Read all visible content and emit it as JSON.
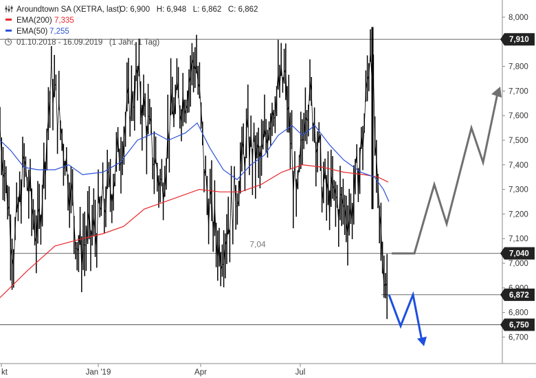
{
  "legend": {
    "title": "Aroundtown SA (XETRA, last)",
    "ohlc": "O: 6,900   H: 6,948   L: 6,862   C: 6,862",
    "ema200_label": "EMA(200)",
    "ema200_value": "7,335",
    "ema50_label": "EMA(50)",
    "ema50_value": "7,255",
    "period": "01.10.2018 - 16.09.2019   (1 Jahr, 1 Tag)"
  },
  "colors": {
    "price": "#000000",
    "ema200": "#e8262a",
    "ema50": "#2c52d8",
    "scenario_up": "#707070",
    "scenario_down": "#1d4fe0",
    "level_line": "#555555",
    "badge_bg": "#222222",
    "badge_text": "#ffffff"
  },
  "chart_data": {
    "type": "line",
    "title": "Aroundtown SA (XETRA, last)",
    "xlabel": "",
    "ylabel": "",
    "x_tick_labels": [
      "kt",
      "Jan '19",
      "Apr",
      "Jul"
    ],
    "y_ticks": [
      "8,000",
      "7,900",
      "7,800",
      "7,700",
      "7,600",
      "7,500",
      "7,400",
      "7,300",
      "7,200",
      "7,100",
      "7,000",
      "6,900",
      "6,800",
      "6,700"
    ],
    "ylim": [
      6.66,
      8.03
    ],
    "grid": false,
    "x": [
      "2018-10",
      "2018-11",
      "2018-12",
      "2019-01",
      "2019-02",
      "2019-03",
      "2019-04",
      "2019-05",
      "2019-06",
      "2019-07",
      "2019-08",
      "2019-09"
    ],
    "price_close": [
      7.55,
      7.45,
      7.2,
      7.3,
      7.55,
      7.75,
      7.4,
      7.15,
      7.25,
      7.65,
      7.3,
      6.86
    ],
    "series": [
      {
        "name": "EMA(200)",
        "y": [
          6.86,
          7.0,
          7.1,
          7.13,
          7.18,
          7.26,
          7.3,
          7.29,
          7.36,
          7.4,
          7.37,
          7.335
        ]
      },
      {
        "name": "EMA(50)",
        "y": [
          7.5,
          7.38,
          7.4,
          7.37,
          7.38,
          7.5,
          7.57,
          7.35,
          7.45,
          7.55,
          7.4,
          7.255
        ]
      }
    ],
    "levels": [
      {
        "value": 7.91,
        "label": "7,910"
      },
      {
        "value": 7.04,
        "label": "7,040",
        "annotation": "7,04"
      },
      {
        "value": 6.872,
        "label": "6,872"
      },
      {
        "value": 6.75,
        "label": "6,750"
      }
    ],
    "scenarios": [
      {
        "name": "up",
        "y": [
          7.04,
          7.04,
          7.32,
          7.16,
          7.55,
          7.41,
          7.69
        ]
      },
      {
        "name": "down",
        "y": [
          6.872,
          6.745,
          6.872,
          6.685
        ]
      }
    ]
  }
}
